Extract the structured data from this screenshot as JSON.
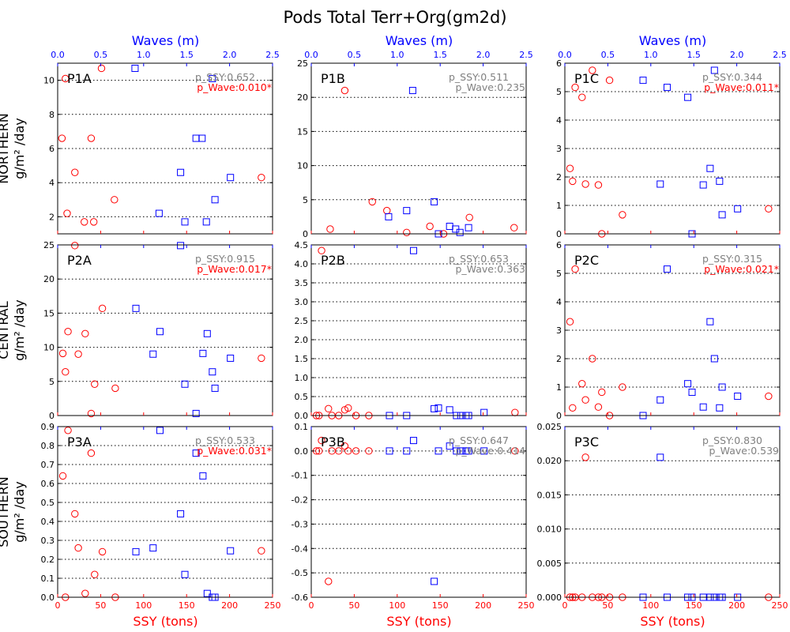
{
  "figure_title": "Pods Total Terr+Org(gm2d)",
  "row_labels": [
    {
      "region": "NORTHERN",
      "unit": "g/m² /day"
    },
    {
      "region": "CENTRAL",
      "unit": "g/m² /day"
    },
    {
      "region": "SOUTHERN",
      "unit": "g/m² /day"
    }
  ],
  "x_bottom_label": "SSY (tons)",
  "x_top_label": "Waves (m)",
  "colors": {
    "ssy": "#ff0000",
    "wave": "#0000ff",
    "p_significant": "#ff0000",
    "p_normal": "#808080"
  },
  "chart_data": [
    {
      "id": "P1A",
      "type": "scatter",
      "title": "P1A",
      "xlim": [
        0,
        250
      ],
      "wlim": [
        0,
        2.5
      ],
      "ylim": [
        1,
        11
      ],
      "yticks": [
        2,
        4,
        6,
        8,
        10
      ],
      "ytick_labels": [
        "2",
        "4",
        "6",
        "8",
        "10"
      ],
      "xticks": [
        0,
        50,
        100,
        150,
        200,
        250
      ],
      "xtick_labels": [
        "0",
        "50",
        "100",
        "150",
        "200",
        "250"
      ],
      "wticks": [
        0,
        0.5,
        1.0,
        1.5,
        2.0,
        2.5
      ],
      "wtick_labels": [
        "0.0",
        "0.5",
        "1.0",
        "1.5",
        "2.0",
        "2.5"
      ],
      "p_ssy": "p_SSY:0.652",
      "p_ssy_sig": false,
      "p_wave": "p_Wave:0.010*",
      "p_wave_sig": true,
      "ssy_points": [
        [
          5,
          6.6
        ],
        [
          9,
          10.1
        ],
        [
          11,
          2.2
        ],
        [
          20,
          4.6
        ],
        [
          31,
          1.7
        ],
        [
          39,
          6.6
        ],
        [
          42,
          1.7
        ],
        [
          51,
          10.7
        ],
        [
          66,
          3.0
        ],
        [
          237,
          4.3
        ]
      ],
      "wave_points": [
        [
          0.9,
          10.7
        ],
        [
          1.18,
          2.2
        ],
        [
          1.43,
          4.6
        ],
        [
          1.48,
          1.7
        ],
        [
          1.61,
          6.6
        ],
        [
          1.68,
          6.6
        ],
        [
          1.73,
          1.7
        ],
        [
          1.8,
          10.1
        ],
        [
          1.83,
          3.0
        ],
        [
          2.01,
          4.3
        ]
      ]
    },
    {
      "id": "P1B",
      "type": "scatter",
      "title": "P1B",
      "xlim": [
        0,
        250
      ],
      "wlim": [
        0,
        2.5
      ],
      "ylim": [
        0,
        25
      ],
      "yticks": [
        0,
        5,
        10,
        15,
        20,
        25
      ],
      "ytick_labels": [
        "0",
        "5",
        "10",
        "15",
        "20",
        "25"
      ],
      "xticks": [
        0,
        50,
        100,
        150,
        200,
        250
      ],
      "xtick_labels": [
        "0",
        "50",
        "100",
        "150",
        "200",
        "250"
      ],
      "wticks": [
        0,
        0.5,
        1.0,
        1.5,
        2.0,
        2.5
      ],
      "wtick_labels": [
        "0.0",
        "0.5",
        "1.0",
        "1.5",
        "2.0",
        "2.5"
      ],
      "p_ssy": "p_SSY:0.511",
      "p_ssy_sig": false,
      "p_wave": "p_Wave:0.235",
      "p_wave_sig": false,
      "ssy_points": [
        [
          22,
          0.7
        ],
        [
          39,
          21.0
        ],
        [
          71,
          4.7
        ],
        [
          88,
          3.4
        ],
        [
          111,
          0.2
        ],
        [
          138,
          1.1
        ],
        [
          154,
          0
        ],
        [
          184,
          2.4
        ],
        [
          236,
          0.9
        ]
      ],
      "wave_points": [
        [
          0.9,
          2.5
        ],
        [
          1.11,
          3.4
        ],
        [
          1.18,
          21.0
        ],
        [
          1.43,
          4.7
        ],
        [
          1.48,
          0
        ],
        [
          1.61,
          1.1
        ],
        [
          1.68,
          0.7
        ],
        [
          1.73,
          0.2
        ],
        [
          1.83,
          0.9
        ]
      ]
    },
    {
      "id": "P1C",
      "type": "scatter",
      "title": "P1C",
      "xlim": [
        0,
        250
      ],
      "wlim": [
        0,
        2.5
      ],
      "ylim": [
        0,
        6
      ],
      "yticks": [
        0,
        1,
        2,
        3,
        4,
        5,
        6
      ],
      "ytick_labels": [
        "0",
        "1",
        "2",
        "3",
        "4",
        "5",
        "6"
      ],
      "xticks": [
        0,
        50,
        100,
        150,
        200,
        250
      ],
      "xtick_labels": [
        "0",
        "50",
        "100",
        "150",
        "200",
        "250"
      ],
      "wticks": [
        0,
        0.5,
        1.0,
        1.5,
        2.0,
        2.5
      ],
      "wtick_labels": [
        "0.0",
        "0.5",
        "1.0",
        "1.5",
        "2.0",
        "2.5"
      ],
      "p_ssy": "p_SSY:0.344",
      "p_ssy_sig": false,
      "p_wave": "p_Wave:0.011*",
      "p_wave_sig": true,
      "ssy_points": [
        [
          6,
          2.3
        ],
        [
          9,
          1.85
        ],
        [
          12,
          5.15
        ],
        [
          20,
          4.8
        ],
        [
          24,
          1.75
        ],
        [
          32,
          5.75
        ],
        [
          39,
          1.72
        ],
        [
          43,
          0
        ],
        [
          52,
          5.4
        ],
        [
          67,
          0.67
        ],
        [
          237,
          0.88
        ]
      ],
      "wave_points": [
        [
          0.91,
          5.4
        ],
        [
          1.11,
          1.75
        ],
        [
          1.19,
          5.15
        ],
        [
          1.43,
          4.8
        ],
        [
          1.48,
          0
        ],
        [
          1.61,
          1.72
        ],
        [
          1.69,
          2.3
        ],
        [
          1.74,
          5.75
        ],
        [
          1.8,
          1.85
        ],
        [
          1.83,
          0.67
        ],
        [
          2.01,
          0.88
        ]
      ]
    },
    {
      "id": "P2A",
      "type": "scatter",
      "title": "P2A",
      "xlim": [
        0,
        250
      ],
      "wlim": [
        0,
        2.5
      ],
      "ylim": [
        0,
        25
      ],
      "yticks": [
        0,
        5,
        10,
        15,
        20,
        25
      ],
      "ytick_labels": [
        "0",
        "5",
        "10",
        "15",
        "20",
        "25"
      ],
      "xticks": [
        0,
        50,
        100,
        150,
        200,
        250
      ],
      "xtick_labels": [
        "0",
        "50",
        "100",
        "150",
        "200",
        "250"
      ],
      "wticks": [
        0,
        0.5,
        1.0,
        1.5,
        2.0,
        2.5
      ],
      "wtick_labels": [
        "0.0",
        "0.5",
        "1.0",
        "1.5",
        "2.0",
        "2.5"
      ],
      "p_ssy": "p_SSY:0.915",
      "p_ssy_sig": false,
      "p_wave": "p_Wave:0.017*",
      "p_wave_sig": true,
      "ssy_points": [
        [
          6,
          9.1
        ],
        [
          9,
          6.4
        ],
        [
          12,
          12.3
        ],
        [
          20,
          24.9
        ],
        [
          24,
          9.0
        ],
        [
          32,
          12.0
        ],
        [
          39,
          0.3
        ],
        [
          43,
          4.6
        ],
        [
          52,
          15.7
        ],
        [
          67,
          4.0
        ],
        [
          237,
          8.4
        ]
      ],
      "wave_points": [
        [
          0.91,
          15.7
        ],
        [
          1.11,
          9.0
        ],
        [
          1.19,
          12.3
        ],
        [
          1.43,
          24.9
        ],
        [
          1.48,
          4.6
        ],
        [
          1.61,
          0.3
        ],
        [
          1.69,
          9.1
        ],
        [
          1.74,
          12.0
        ],
        [
          1.8,
          6.4
        ],
        [
          1.83,
          4.0
        ],
        [
          2.01,
          8.4
        ]
      ]
    },
    {
      "id": "P2B",
      "type": "scatter",
      "title": "P2B",
      "xlim": [
        0,
        250
      ],
      "wlim": [
        0,
        2.5
      ],
      "ylim": [
        0,
        4.5
      ],
      "yticks": [
        0,
        0.5,
        1.0,
        1.5,
        2.0,
        2.5,
        3.0,
        3.5,
        4.0,
        4.5
      ],
      "ytick_labels": [
        "0.0",
        "0.5",
        "1.0",
        "1.5",
        "2.0",
        "2.5",
        "3.0",
        "3.5",
        "4.0",
        "4.5"
      ],
      "xticks": [
        0,
        50,
        100,
        150,
        200,
        250
      ],
      "xtick_labels": [
        "0",
        "50",
        "100",
        "150",
        "200",
        "250"
      ],
      "wticks": [
        0,
        0.5,
        1.0,
        1.5,
        2.0,
        2.5
      ],
      "wtick_labels": [
        "0.0",
        "0.5",
        "1.0",
        "1.5",
        "2.0",
        "2.5"
      ],
      "p_ssy": "p_SSY:0.653",
      "p_ssy_sig": false,
      "p_wave": "p_Wave:0.363",
      "p_wave_sig": false,
      "ssy_points": [
        [
          6,
          0
        ],
        [
          9,
          0
        ],
        [
          12,
          4.35
        ],
        [
          20,
          0.18
        ],
        [
          24,
          0
        ],
        [
          32,
          0
        ],
        [
          39,
          0.15
        ],
        [
          43,
          0.2
        ],
        [
          52,
          0
        ],
        [
          67,
          0
        ],
        [
          237,
          0.08
        ]
      ],
      "wave_points": [
        [
          0.91,
          0
        ],
        [
          1.11,
          0
        ],
        [
          1.19,
          4.35
        ],
        [
          1.43,
          0.18
        ],
        [
          1.48,
          0.2
        ],
        [
          1.61,
          0.15
        ],
        [
          1.69,
          0
        ],
        [
          1.74,
          0
        ],
        [
          1.8,
          0
        ],
        [
          1.83,
          0
        ],
        [
          2.01,
          0.08
        ]
      ]
    },
    {
      "id": "P2C",
      "type": "scatter",
      "title": "P2C",
      "xlim": [
        0,
        250
      ],
      "wlim": [
        0,
        2.5
      ],
      "ylim": [
        0,
        6
      ],
      "yticks": [
        0,
        1,
        2,
        3,
        4,
        5,
        6
      ],
      "ytick_labels": [
        "0",
        "1",
        "2",
        "3",
        "4",
        "5",
        "6"
      ],
      "xticks": [
        0,
        50,
        100,
        150,
        200,
        250
      ],
      "xtick_labels": [
        "0",
        "50",
        "100",
        "150",
        "200",
        "250"
      ],
      "wticks": [
        0,
        0.5,
        1.0,
        1.5,
        2.0,
        2.5
      ],
      "wtick_labels": [
        "0.0",
        "0.5",
        "1.0",
        "1.5",
        "2.0",
        "2.5"
      ],
      "p_ssy": "p_SSY:0.315",
      "p_ssy_sig": false,
      "p_wave": "p_Wave:0.021*",
      "p_wave_sig": true,
      "ssy_points": [
        [
          6,
          3.3
        ],
        [
          9,
          0.27
        ],
        [
          12,
          5.15
        ],
        [
          20,
          1.12
        ],
        [
          24,
          0.55
        ],
        [
          32,
          2.0
        ],
        [
          39,
          0.3
        ],
        [
          43,
          0.82
        ],
        [
          52,
          0
        ],
        [
          67,
          1.0
        ],
        [
          237,
          0.68
        ]
      ],
      "wave_points": [
        [
          0.91,
          0
        ],
        [
          1.11,
          0.55
        ],
        [
          1.19,
          5.15
        ],
        [
          1.43,
          1.12
        ],
        [
          1.48,
          0.82
        ],
        [
          1.61,
          0.3
        ],
        [
          1.69,
          3.3
        ],
        [
          1.74,
          2.0
        ],
        [
          1.8,
          0.27
        ],
        [
          1.83,
          1.0
        ],
        [
          2.01,
          0.68
        ]
      ]
    },
    {
      "id": "P3A",
      "type": "scatter",
      "title": "P3A",
      "xlim": [
        0,
        250
      ],
      "wlim": [
        0,
        2.5
      ],
      "ylim": [
        0,
        0.9
      ],
      "yticks": [
        0,
        0.1,
        0.2,
        0.3,
        0.4,
        0.5,
        0.6,
        0.7,
        0.8,
        0.9
      ],
      "ytick_labels": [
        "0.0",
        "0.1",
        "0.2",
        "0.3",
        "0.4",
        "0.5",
        "0.6",
        "0.7",
        "0.8",
        "0.9"
      ],
      "xticks": [
        0,
        50,
        100,
        150,
        200,
        250
      ],
      "xtick_labels": [
        "0",
        "50",
        "100",
        "150",
        "200",
        "250"
      ],
      "wticks": [
        0,
        0.5,
        1.0,
        1.5,
        2.0,
        2.5
      ],
      "wtick_labels": [
        "0.0",
        "0.5",
        "1.0",
        "1.5",
        "2.0",
        "2.5"
      ],
      "p_ssy": "p_SSY:0.533",
      "p_ssy_sig": false,
      "p_wave": "p_Wave:0.031*",
      "p_wave_sig": true,
      "ssy_points": [
        [
          6,
          0.64
        ],
        [
          9,
          0
        ],
        [
          12,
          0.88
        ],
        [
          20,
          0.44
        ],
        [
          24,
          0.26
        ],
        [
          32,
          0.02
        ],
        [
          39,
          0.76
        ],
        [
          43,
          0.12
        ],
        [
          52,
          0.24
        ],
        [
          67,
          0
        ],
        [
          237,
          0.245
        ]
      ],
      "wave_points": [
        [
          0.91,
          0.24
        ],
        [
          1.11,
          0.26
        ],
        [
          1.19,
          0.88
        ],
        [
          1.43,
          0.44
        ],
        [
          1.48,
          0.12
        ],
        [
          1.61,
          0.76
        ],
        [
          1.69,
          0.64
        ],
        [
          1.74,
          0.02
        ],
        [
          1.8,
          0
        ],
        [
          1.83,
          0
        ],
        [
          2.01,
          0.245
        ]
      ]
    },
    {
      "id": "P3B",
      "type": "scatter",
      "title": "P3B",
      "xlim": [
        0,
        250
      ],
      "wlim": [
        0,
        2.5
      ],
      "ylim": [
        -0.6,
        0.1
      ],
      "yticks": [
        -0.6,
        -0.5,
        -0.4,
        -0.3,
        -0.2,
        -0.1,
        0,
        0.1
      ],
      "ytick_labels": [
        "-0.6",
        "-0.5",
        "-0.4",
        "-0.3",
        "-0.2",
        "-0.1",
        "0.0",
        "0.1"
      ],
      "xticks": [
        0,
        50,
        100,
        150,
        200,
        250
      ],
      "xtick_labels": [
        "0",
        "50",
        "100",
        "150",
        "200",
        "250"
      ],
      "wticks": [
        0,
        0.5,
        1.0,
        1.5,
        2.0,
        2.5
      ],
      "wtick_labels": [
        "0.0",
        "0.5",
        "1.0",
        "1.5",
        "2.0",
        "2.5"
      ],
      "p_ssy": "p_SSY:0.647",
      "p_ssy_sig": false,
      "p_wave": "p_Wave:0.414",
      "p_wave_sig": false,
      "ssy_points": [
        [
          6,
          0
        ],
        [
          9,
          0
        ],
        [
          12,
          0.043
        ],
        [
          20,
          -0.535
        ],
        [
          24,
          0
        ],
        [
          32,
          0
        ],
        [
          39,
          0.02
        ],
        [
          43,
          0
        ],
        [
          52,
          0
        ],
        [
          67,
          0
        ],
        [
          237,
          0
        ]
      ],
      "wave_points": [
        [
          0.91,
          0
        ],
        [
          1.11,
          0
        ],
        [
          1.19,
          0.043
        ],
        [
          1.43,
          -0.535
        ],
        [
          1.48,
          0
        ],
        [
          1.61,
          0.02
        ],
        [
          1.69,
          0
        ],
        [
          1.74,
          0
        ],
        [
          1.8,
          0
        ],
        [
          1.83,
          0
        ],
        [
          2.01,
          0
        ]
      ]
    },
    {
      "id": "P3C",
      "type": "scatter",
      "title": "P3C",
      "xlim": [
        0,
        250
      ],
      "wlim": [
        0,
        2.5
      ],
      "ylim": [
        0,
        0.025
      ],
      "yticks": [
        0,
        0.005,
        0.01,
        0.015,
        0.02,
        0.025
      ],
      "ytick_labels": [
        "0.000",
        "0.005",
        "0.010",
        "0.015",
        "0.020",
        "0.025"
      ],
      "xticks": [
        0,
        50,
        100,
        150,
        200,
        250
      ],
      "xtick_labels": [
        "0",
        "50",
        "100",
        "150",
        "200",
        "250"
      ],
      "wticks": [
        0,
        0.5,
        1.0,
        1.5,
        2.0,
        2.5
      ],
      "wtick_labels": [
        "0.0",
        "0.5",
        "1.0",
        "1.5",
        "2.0",
        "2.5"
      ],
      "p_ssy": "p_SSY:0.830",
      "p_ssy_sig": false,
      "p_wave": "p_Wave:0.539",
      "p_wave_sig": false,
      "ssy_points": [
        [
          6,
          0
        ],
        [
          9,
          0
        ],
        [
          12,
          0
        ],
        [
          20,
          0
        ],
        [
          24,
          0.0205
        ],
        [
          32,
          0
        ],
        [
          39,
          0
        ],
        [
          43,
          0
        ],
        [
          52,
          0
        ],
        [
          67,
          0
        ],
        [
          237,
          0
        ]
      ],
      "wave_points": [
        [
          0.91,
          0
        ],
        [
          1.11,
          0.0205
        ],
        [
          1.19,
          0
        ],
        [
          1.43,
          0
        ],
        [
          1.48,
          0
        ],
        [
          1.61,
          0
        ],
        [
          1.69,
          0
        ],
        [
          1.74,
          0
        ],
        [
          1.8,
          0
        ],
        [
          1.83,
          0
        ],
        [
          2.01,
          0
        ]
      ]
    }
  ]
}
